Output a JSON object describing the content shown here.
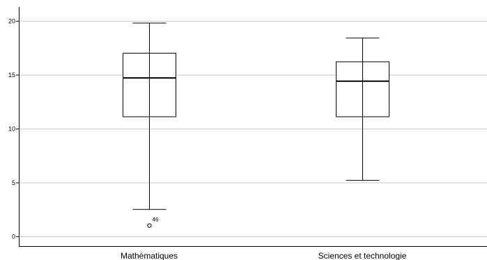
{
  "chart_data": {
    "type": "boxplot",
    "categories": [
      "Mathématiques",
      "Sciences et technologie"
    ],
    "boxes": [
      {
        "category": "Mathématiques",
        "min": 2.5,
        "q1": 11.1,
        "median": 14.7,
        "q3": 17.0,
        "max": 19.8,
        "outliers": [
          {
            "value": 1.0,
            "label": "46"
          }
        ]
      },
      {
        "category": "Sciences et technologie",
        "min": 5.2,
        "q1": 11.1,
        "median": 14.4,
        "q3": 16.2,
        "max": 18.4,
        "outliers": []
      }
    ],
    "yticks": [
      0,
      5,
      10,
      15,
      20
    ],
    "ylim": [
      -0.9,
      21.2
    ],
    "grid": true,
    "title": "",
    "xlabel": "",
    "ylabel": "",
    "colors": {
      "grid": "#c8c8c8",
      "axis": "#000000",
      "box_fill": "#ffffff",
      "stroke": "#000000"
    }
  }
}
